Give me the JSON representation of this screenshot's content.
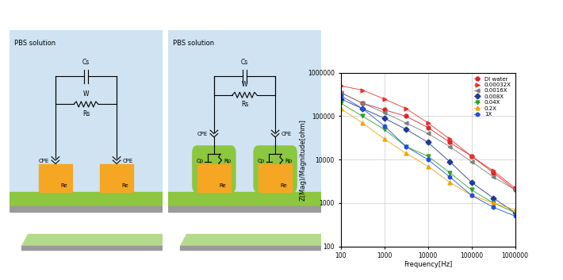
{
  "diagrams": [
    {
      "title": "PBS solution",
      "bulk": {
        "capacitor": "Cs",
        "warburg": "W",
        "resistor": "Rs"
      },
      "interface": [
        "CPE",
        "CPE"
      ],
      "electrode": [
        "Re",
        "Re"
      ]
    },
    {
      "title": "PBS solution",
      "bulk": {
        "capacitor": "Cs",
        "warburg": "W",
        "resistor": "Rs"
      },
      "interface": [
        "CPE",
        "CPE"
      ],
      "coating": [
        {
          "capacitor": "Cp",
          "resistor": "Rp"
        },
        {
          "capacitor": "Cp",
          "resistor": "Rp"
        }
      ],
      "electrode": [
        "Re",
        "Re"
      ]
    }
  ],
  "chart_data": {
    "type": "line",
    "x_label": "Frequency[Hz]",
    "y_label": "Z(Mag)/Magnitude[ohm]",
    "log": true,
    "grid": true,
    "legend": "upper right",
    "x": [
      100,
      316,
      1000,
      3162,
      10000,
      31623,
      100000,
      316228,
      1000000
    ],
    "xlim": [
      100,
      1000000
    ],
    "xticks": [
      100,
      1000,
      10000,
      100000,
      1000000
    ],
    "ylim": [
      100,
      1000000
    ],
    "yticks": [
      100,
      1000,
      10000,
      100000,
      1000000
    ],
    "series": [
      {
        "name": "DI water",
        "color": "#d62728",
        "marker": "circle",
        "line_style": "solid",
        "values": [
          350000,
          200000,
          140000,
          100000,
          55000,
          25000,
          12000,
          5000,
          2000
        ]
      },
      {
        "name": "0.00032X",
        "color": "#e8342a",
        "marker": "triangle_right",
        "line_style": "solid",
        "values": [
          500000,
          400000,
          250000,
          150000,
          70000,
          30000,
          12000,
          5500,
          2200
        ]
      },
      {
        "name": "0.0016X",
        "color": "#7f7f7f",
        "marker": "triangle_left",
        "line_style": "solid",
        "values": [
          350000,
          200000,
          120000,
          70000,
          40000,
          20000,
          9000,
          4000,
          2000
        ]
      },
      {
        "name": "0.008X",
        "color": "#1f3a93",
        "marker": "diamond",
        "line_style": "solid",
        "values": [
          250000,
          150000,
          90000,
          50000,
          25000,
          9000,
          3000,
          1300,
          600
        ]
      },
      {
        "name": "0.04X",
        "color": "#2ca02c",
        "marker": "triangle_down",
        "line_style": "solid",
        "values": [
          200000,
          100000,
          50000,
          20000,
          12000,
          5000,
          2000,
          1000,
          600
        ]
      },
      {
        "name": "0.2X",
        "color": "#f4a300",
        "marker": "triangle_up",
        "line_style": "solid",
        "values": [
          150000,
          70000,
          30000,
          14000,
          7000,
          3000,
          1500,
          1000,
          700
        ]
      },
      {
        "name": "1X",
        "color": "#1f4fd6",
        "marker": "hexagon",
        "line_style": "solid",
        "values": [
          300000,
          150000,
          60000,
          20000,
          10000,
          4000,
          1500,
          800,
          500
        ]
      }
    ]
  }
}
